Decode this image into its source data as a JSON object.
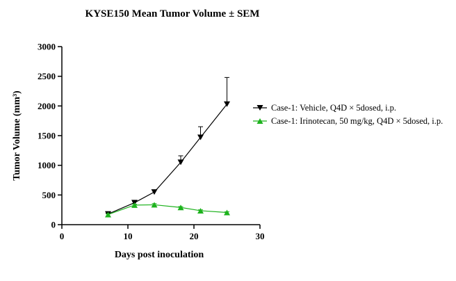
{
  "chart_data": {
    "type": "line",
    "title": "KYSE150 Mean Tumor Volume ± SEM",
    "xlabel": "Days post inoculation",
    "ylabel": "Tumor Volume (mm³)",
    "xlim": [
      0,
      30
    ],
    "ylim": [
      0,
      3000
    ],
    "xticks": [
      "0",
      "10",
      "20",
      "30"
    ],
    "yticks": [
      "0",
      "500",
      "1000",
      "1500",
      "2000",
      "2500",
      "3000"
    ],
    "grid": false,
    "legend_position": "right",
    "series": [
      {
        "name": "Case-1: Vehicle, Q4D × 5dosed, i.p.",
        "color": "#000000",
        "marker": "triangle-down",
        "x": [
          7,
          11,
          14,
          18,
          21,
          25
        ],
        "y": [
          180,
          370,
          550,
          1050,
          1470,
          2030
        ],
        "sem": [
          15,
          20,
          30,
          110,
          180,
          450
        ]
      },
      {
        "name": "Case-1: Irinotecan, 50 mg/kg, Q4D × 5dosed, i.p.",
        "color": "#1db21d",
        "marker": "triangle-up",
        "x": [
          7,
          11,
          14,
          18,
          21,
          25
        ],
        "y": [
          170,
          330,
          335,
          290,
          235,
          205
        ],
        "sem": [
          10,
          15,
          20,
          15,
          15,
          12
        ]
      }
    ]
  }
}
